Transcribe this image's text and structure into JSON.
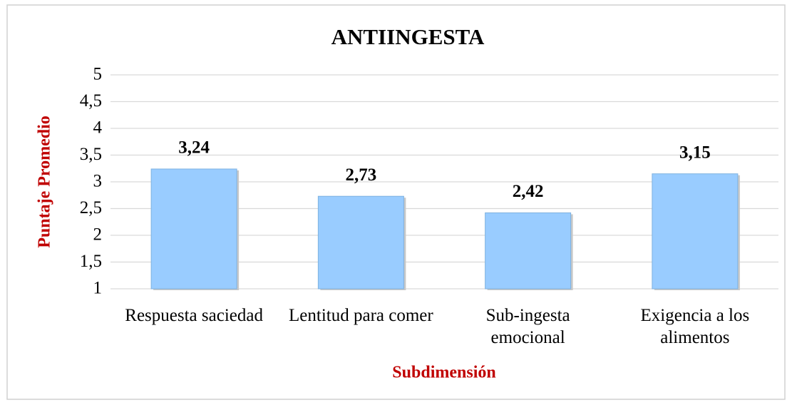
{
  "chart_data": {
    "type": "bar",
    "title": "ANTIINGESTA",
    "x_label": "Subdimensión",
    "y_label": "Puntaje Promedio",
    "categories": [
      "Respuesta saciedad",
      "Lentitud para comer",
      "Sub-ingesta emocional",
      "Exigencia a los alimentos"
    ],
    "values": [
      3.24,
      2.73,
      2.42,
      3.15
    ],
    "value_labels": [
      "3,24",
      "2,73",
      "2,42",
      "3,15"
    ],
    "color": "#99ccff",
    "ylim": [
      1,
      5
    ],
    "yticks": [
      1,
      {
        "value": 1.5,
        "label": "1,5"
      },
      2,
      {
        "value": 2.5,
        "label": "2,5"
      },
      3,
      {
        "value": 3.5,
        "label": "3,5"
      },
      4,
      {
        "value": 4.5,
        "label": "4,5"
      },
      5
    ],
    "grid": true
  }
}
